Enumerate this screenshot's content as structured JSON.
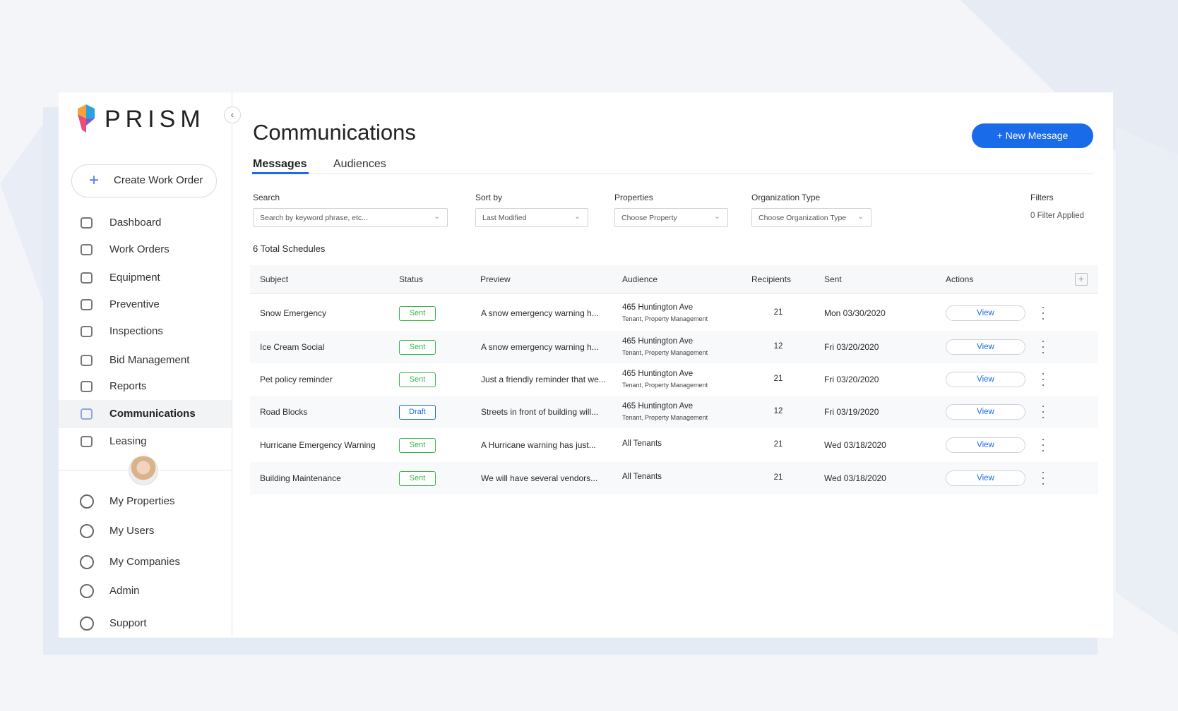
{
  "brand": "PRISM",
  "sidebar": {
    "create_button": "Create Work Order",
    "nav": [
      {
        "label": "Dashboard"
      },
      {
        "label": "Work Orders"
      },
      {
        "label": "Equipment"
      },
      {
        "label": "Preventive"
      },
      {
        "label": "Inspections"
      },
      {
        "label": "Bid Management"
      },
      {
        "label": "Reports"
      },
      {
        "label": "Communications",
        "active": true
      },
      {
        "label": "Leasing"
      }
    ],
    "bottom_nav": [
      {
        "label": "My Properties"
      },
      {
        "label": "My Users"
      },
      {
        "label": "My Companies"
      },
      {
        "label": "Admin"
      },
      {
        "label": "Support"
      }
    ]
  },
  "header": {
    "title": "Communications",
    "new_button": "+ New Message"
  },
  "tabs": [
    {
      "label": "Messages",
      "active": true
    },
    {
      "label": "Audiences"
    }
  ],
  "filters": [
    {
      "label": "Search",
      "placeholder": "Search by keyword phrase, etc..."
    },
    {
      "label": "Sort by",
      "placeholder": "Last Modified"
    },
    {
      "label": "Properties",
      "placeholder": "Choose Property"
    },
    {
      "label": "Organization Type",
      "placeholder": "Choose Organization Type"
    },
    {
      "label": "Filters",
      "value": "0 Filter Applied"
    }
  ],
  "total": "6 Total Schedules",
  "table": {
    "columns": [
      "Subject",
      "Status",
      "Preview",
      "Audience",
      "Recipients",
      "Sent",
      "Actions"
    ],
    "rows": [
      {
        "subject": "Snow Emergency",
        "status": "Sent",
        "status_color": "#3bb54a",
        "preview": "A snow emergency warning h...",
        "audience": "465 Huntington Ave",
        "audience_detail": "Tenant, Property Management",
        "recipients": 21,
        "sent": "Mon 03/30/2020",
        "action": "View"
      },
      {
        "subject": "Ice Cream Social",
        "status": "Sent",
        "status_color": "#3bb54a",
        "preview": "A snow emergency warning h...",
        "audience": "465 Huntington Ave",
        "audience_detail": "Tenant, Property Management",
        "recipients": 12,
        "sent": "Fri 03/20/2020",
        "action": "View"
      },
      {
        "subject": "Pet policy reminder",
        "status": "Sent",
        "status_color": "#3bb54a",
        "preview": "Just a friendly reminder that we...",
        "audience": "465 Huntington Ave",
        "audience_detail": "Tenant, Property Management",
        "recipients": 21,
        "sent": "Fri 03/20/2020",
        "action": "View"
      },
      {
        "subject": "Road Blocks",
        "status": "Draft",
        "status_color": "#1a6bea",
        "preview": "Streets in front of building will...",
        "audience": "465 Huntington Ave",
        "audience_detail": "Tenant, Property Management",
        "recipients": 12,
        "sent": "Fri 03/19/2020",
        "action": "View"
      },
      {
        "subject": "Hurricane Emergency Warning",
        "status": "Sent",
        "status_color": "#3bb54a",
        "preview": "A Hurricane warning has just...",
        "audience": "All Tenants",
        "recipients": 21,
        "sent": "Wed 03/18/2020",
        "action": "View"
      },
      {
        "subject": "Building Maintenance",
        "status": "Sent",
        "status_color": "#3bb54a",
        "preview": "We will have several vendors...",
        "audience": "All Tenants",
        "recipients": 21,
        "sent": "Wed 03/18/2020",
        "action": "View"
      }
    ]
  }
}
